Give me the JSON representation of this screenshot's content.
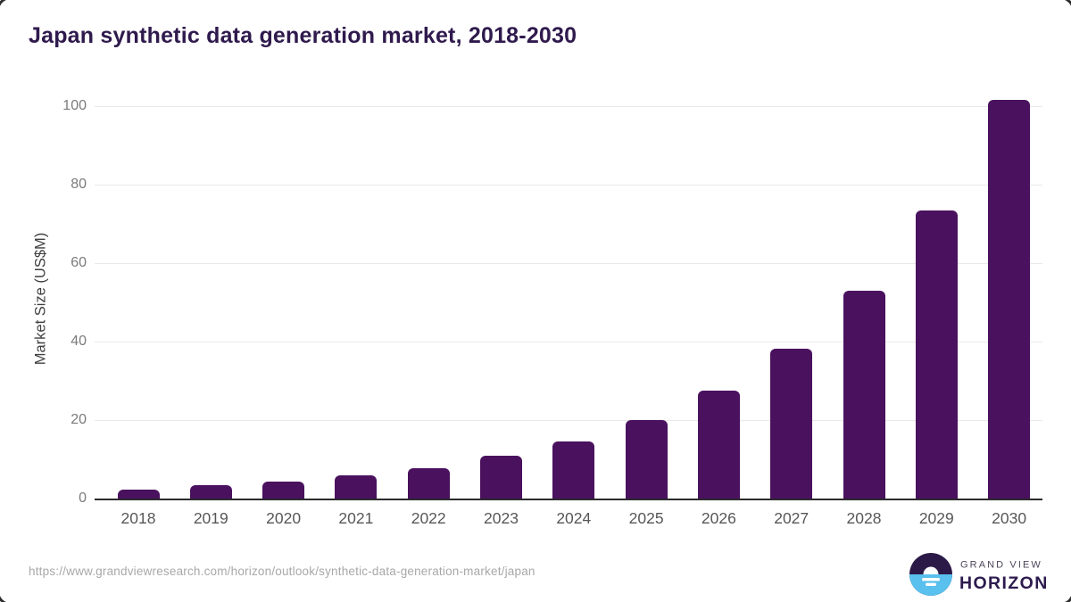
{
  "page": {
    "source_url": "https://www.grandviewresearch.com/horizon/outlook/synthetic-data-generation-market/japan"
  },
  "chart_data": {
    "type": "bar",
    "title": "Japan synthetic data generation market, 2018-2030",
    "categories": [
      "2018",
      "2019",
      "2020",
      "2021",
      "2022",
      "2023",
      "2024",
      "2025",
      "2026",
      "2027",
      "2028",
      "2029",
      "2030"
    ],
    "values": [
      2.3,
      3.4,
      4.3,
      5.8,
      7.8,
      10.9,
      14.6,
      20.1,
      27.6,
      38.2,
      53.0,
      73.5,
      101.6
    ],
    "xlabel": "",
    "ylabel": "Market Size (US$M)",
    "ylim": [
      0,
      105
    ],
    "yticks": [
      0,
      20,
      40,
      60,
      80,
      100
    ],
    "grid": true,
    "legend": "none",
    "bar_color": "#4A115E"
  },
  "branding": {
    "logo_text_top": "GRAND VIEW",
    "logo_text_bottom": "HORIZON",
    "logo_colors": {
      "circle_top": "#2b1a47",
      "circle_bottom": "#5ac0ee",
      "sun": "#ffffff",
      "text_top": "#4d4659",
      "text_bottom": "#2d1b4e"
    }
  },
  "colors": {
    "title": "#2f1a4d",
    "bar": "#4A115E",
    "gridline": "#e9e9e9",
    "axis_line": "#2b2b2b",
    "tick_text": "#7a7a7a",
    "x_tick_text": "#575757",
    "source_text": "#a8a8a8"
  }
}
